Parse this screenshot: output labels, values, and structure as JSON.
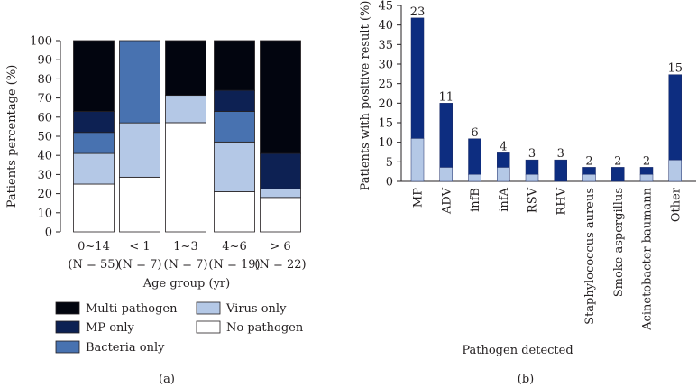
{
  "chart_data": [
    {
      "type": "bar",
      "stacked": true,
      "panel_label": "(a)",
      "ylabel": "Patients percentage (%)",
      "xlabel": "Age group (yr)",
      "ylim": [
        0,
        100
      ],
      "yticks": [
        0,
        10,
        20,
        30,
        40,
        50,
        60,
        70,
        80,
        90,
        100
      ],
      "categories": [
        {
          "label": "0~14",
          "sub": "(N = 55)"
        },
        {
          "label": "< 1",
          "sub": "(N = 7)"
        },
        {
          "label": "1~3",
          "sub": "(N = 7)"
        },
        {
          "label": "4~6",
          "sub": "(N = 19)"
        },
        {
          "label": "> 6",
          "sub": "(N = 22)"
        }
      ],
      "series": [
        {
          "name": "No pathogen",
          "color": "#ffffff",
          "values": [
            25,
            28.6,
            57.1,
            21,
            18
          ]
        },
        {
          "name": "Virus only",
          "color": "#b4c8e6",
          "values": [
            16,
            28.4,
            14.3,
            26,
            4.5
          ]
        },
        {
          "name": "Bacteria only",
          "color": "#4872b0",
          "values": [
            11,
            43,
            0,
            16,
            0
          ]
        },
        {
          "name": "MP only",
          "color": "#0d2153",
          "values": [
            11,
            0,
            0,
            11,
            18.5
          ]
        },
        {
          "name": "Multi-pathogen",
          "color": "#02050f",
          "values": [
            37,
            0,
            28.6,
            26,
            59
          ]
        }
      ],
      "legend": {
        "placement": "bottom",
        "items": [
          {
            "name": "Multi-pathogen",
            "color": "#02050f"
          },
          {
            "name": "Virus only",
            "color": "#b4c8e6"
          },
          {
            "name": "MP only",
            "color": "#0d2153"
          },
          {
            "name": "No pathogen",
            "color": "#ffffff"
          },
          {
            "name": "Bacteria only",
            "color": "#4872b0"
          }
        ]
      }
    },
    {
      "type": "bar",
      "stacked": true,
      "panel_label": "(b)",
      "ylabel": "Patients with positive result (%)",
      "xlabel": "Pathogen detected",
      "ylim": [
        0,
        45
      ],
      "yticks": [
        0,
        5,
        10,
        15,
        20,
        25,
        30,
        35,
        40,
        45
      ],
      "categories": [
        "MP",
        "ADV",
        "infB",
        "infA",
        "RSV",
        "RHV",
        "Staphylococcus aureus",
        "Smoke aspergillus",
        "Acinetobacter baumann",
        "Other"
      ],
      "series": [
        {
          "name": "lower segment",
          "color": "#b4c8e6",
          "values": [
            11,
            3.6,
            1.8,
            3.6,
            1.8,
            0,
            1.8,
            0,
            1.8,
            5.5
          ]
        },
        {
          "name": "upper segment",
          "color": "#0d2d80",
          "values": [
            30.8,
            16.4,
            9.1,
            3.7,
            3.7,
            5.5,
            1.8,
            3.6,
            1.8,
            21.8
          ]
        }
      ],
      "data_labels": [
        "23",
        "11",
        "6",
        "4",
        "3",
        "3",
        "2",
        "2",
        "2",
        "15"
      ]
    }
  ]
}
